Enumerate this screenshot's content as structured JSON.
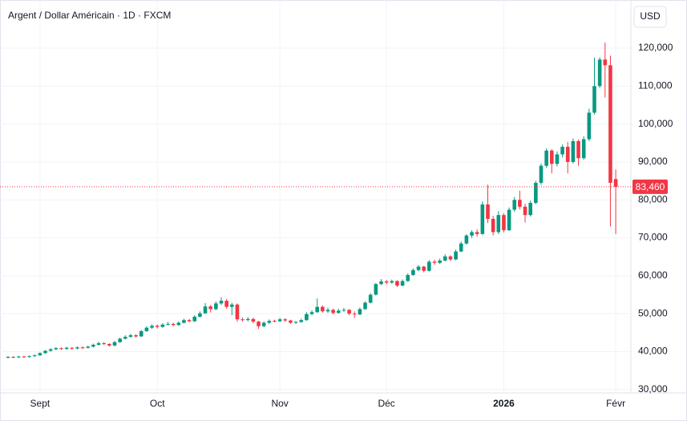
{
  "chart_data": {
    "type": "candlestick",
    "title": "Argent / Dollar Américain · 1D · FXCM",
    "currency": "USD",
    "up_color": "#089981",
    "down_color": "#f23645",
    "grid": true,
    "categories": [
      null,
      null,
      null,
      null,
      null,
      null,
      "Sept",
      null,
      null,
      null,
      null,
      null,
      null,
      null,
      null,
      null,
      null,
      null,
      null,
      null,
      null,
      null,
      null,
      null,
      null,
      null,
      null,
      null,
      "Oct",
      null,
      null,
      null,
      null,
      null,
      null,
      null,
      null,
      null,
      null,
      null,
      null,
      null,
      null,
      null,
      null,
      null,
      null,
      null,
      null,
      null,
      null,
      "Nov",
      null,
      null,
      null,
      null,
      null,
      null,
      null,
      null,
      null,
      null,
      null,
      null,
      null,
      null,
      null,
      null,
      null,
      null,
      null,
      "Déc",
      null,
      null,
      null,
      null,
      null,
      null,
      null,
      null,
      null,
      null,
      null,
      null,
      null,
      null,
      null,
      null,
      null,
      null,
      null,
      null,
      null,
      "2026",
      null,
      null,
      null,
      null,
      null,
      null,
      null,
      null,
      null,
      null,
      null,
      null,
      null,
      null,
      null,
      null,
      null,
      null,
      null,
      null,
      "Févr"
    ],
    "open": [
      38400,
      38600,
      38500,
      38700,
      38600,
      38800,
      39000,
      39600,
      40200,
      40600,
      40900,
      40700,
      41000,
      40800,
      41100,
      41000,
      41300,
      41800,
      42200,
      42000,
      41600,
      42500,
      43400,
      43900,
      44300,
      44000,
      45400,
      46300,
      46800,
      46500,
      47100,
      47300,
      47000,
      47600,
      48300,
      48000,
      49200,
      50100,
      51900,
      51200,
      52700,
      53400,
      51800,
      52400,
      48500,
      48300,
      48600,
      47900,
      46700,
      47600,
      48100,
      48000,
      48500,
      48200,
      47600,
      47800,
      48300,
      49900,
      50400,
      51800,
      50600,
      51000,
      50200,
      50800,
      51000,
      50000,
      49800,
      51200,
      52900,
      55000,
      57800,
      58500,
      58200,
      58600,
      57400,
      58600,
      60200,
      61500,
      62400,
      61300,
      63700,
      63400,
      64000,
      65100,
      64300,
      66400,
      68500,
      70600,
      71500,
      71000,
      78800,
      75000,
      71500,
      76000,
      72000,
      77400,
      80000,
      78200,
      76000,
      79200,
      84500,
      89000,
      93000,
      89500,
      92000,
      94000,
      90000,
      95500,
      91000,
      96000,
      103000,
      110000,
      117000,
      115500,
      85500
    ],
    "high": [
      38800,
      38800,
      38900,
      38900,
      39000,
      39300,
      39800,
      40400,
      40900,
      41200,
      41100,
      41300,
      41200,
      41400,
      41400,
      41600,
      42100,
      42600,
      42500,
      42200,
      42800,
      43700,
      44300,
      44700,
      44600,
      45700,
      46700,
      47200,
      47100,
      47500,
      47800,
      47600,
      48000,
      48700,
      48600,
      49600,
      50600,
      52800,
      52300,
      53200,
      54300,
      53900,
      52900,
      52700,
      49000,
      49100,
      48900,
      48100,
      48000,
      48500,
      48400,
      48900,
      48800,
      48400,
      48100,
      48700,
      50400,
      50900,
      54000,
      52200,
      51600,
      51300,
      51300,
      51500,
      51200,
      50600,
      51600,
      53200,
      55400,
      58100,
      59100,
      58900,
      59000,
      58800,
      59000,
      60600,
      61900,
      62800,
      62600,
      64100,
      64200,
      64500,
      65600,
      65400,
      66900,
      69000,
      71000,
      72000,
      72200,
      79600,
      84000,
      75800,
      77000,
      76500,
      78000,
      80800,
      82400,
      79000,
      79800,
      85000,
      89600,
      93600,
      93400,
      92800,
      94600,
      95300,
      96200,
      95900,
      96800,
      104000,
      117500,
      117600,
      121500,
      118000,
      88000
    ],
    "low": [
      38200,
      38300,
      38300,
      38400,
      38400,
      38600,
      38900,
      39400,
      40000,
      40400,
      40400,
      40500,
      40500,
      40600,
      40700,
      40800,
      41100,
      41600,
      41700,
      41300,
      41400,
      42300,
      43200,
      43700,
      43700,
      43900,
      45200,
      46000,
      46100,
      46300,
      46900,
      46700,
      46800,
      47400,
      47700,
      47800,
      49000,
      49900,
      50300,
      50900,
      52300,
      51300,
      49600,
      47900,
      47900,
      48000,
      47500,
      46000,
      46400,
      47300,
      47700,
      47800,
      47900,
      47300,
      47300,
      47600,
      48100,
      49600,
      50200,
      50300,
      50200,
      49800,
      50000,
      50500,
      49600,
      48900,
      49600,
      51000,
      52700,
      54800,
      57500,
      57700,
      57900,
      57000,
      57200,
      58400,
      60000,
      61200,
      60900,
      61100,
      62900,
      63100,
      63800,
      63900,
      64100,
      66200,
      68200,
      70000,
      70300,
      70800,
      73900,
      70600,
      71000,
      71400,
      71800,
      76900,
      77500,
      74000,
      75600,
      78900,
      84000,
      88500,
      87000,
      88800,
      91200,
      87000,
      89600,
      89000,
      90600,
      95500,
      102500,
      109500,
      107000,
      73000,
      71000
    ],
    "close": [
      38600,
      38500,
      38700,
      38600,
      38800,
      39000,
      39600,
      40200,
      40600,
      40900,
      40700,
      41000,
      40800,
      41100,
      41000,
      41300,
      41800,
      42200,
      42000,
      41600,
      42500,
      43400,
      43900,
      44300,
      44000,
      45400,
      46300,
      46800,
      46500,
      47100,
      47300,
      47000,
      47600,
      48300,
      48000,
      49200,
      50100,
      51900,
      51200,
      52700,
      53400,
      51800,
      52400,
      48500,
      48300,
      48600,
      47900,
      46700,
      47600,
      48100,
      48000,
      48500,
      48200,
      47600,
      47800,
      48300,
      49900,
      50400,
      51800,
      50600,
      51000,
      50200,
      50800,
      51000,
      50000,
      49800,
      51200,
      52900,
      55000,
      57800,
      58500,
      58200,
      58600,
      57400,
      58600,
      60200,
      61500,
      62400,
      61300,
      63700,
      63400,
      64000,
      65100,
      64300,
      66400,
      68500,
      70600,
      71500,
      71000,
      78800,
      75000,
      71500,
      76000,
      72000,
      77400,
      80000,
      78200,
      76000,
      79200,
      84500,
      89000,
      93000,
      89500,
      92000,
      94000,
      90000,
      95500,
      91000,
      96000,
      103000,
      110000,
      117000,
      115500,
      84500,
      83460
    ],
    "ylim": [
      29100,
      132700
    ],
    "yticks": [
      {
        "value": 30000,
        "label": "30,000"
      },
      {
        "value": 40000,
        "label": "40,000"
      },
      {
        "value": 50000,
        "label": "50,000"
      },
      {
        "value": 60000,
        "label": "60,000"
      },
      {
        "value": 70000,
        "label": "70,000"
      },
      {
        "value": 80000,
        "label": "80,000"
      },
      {
        "value": 90000,
        "label": "90,000"
      },
      {
        "value": 100000,
        "label": "100,000"
      },
      {
        "value": 110000,
        "label": "110,000"
      },
      {
        "value": 120000,
        "label": "120,000"
      }
    ],
    "last_price": {
      "value": 83460,
      "label": "83,460"
    }
  }
}
